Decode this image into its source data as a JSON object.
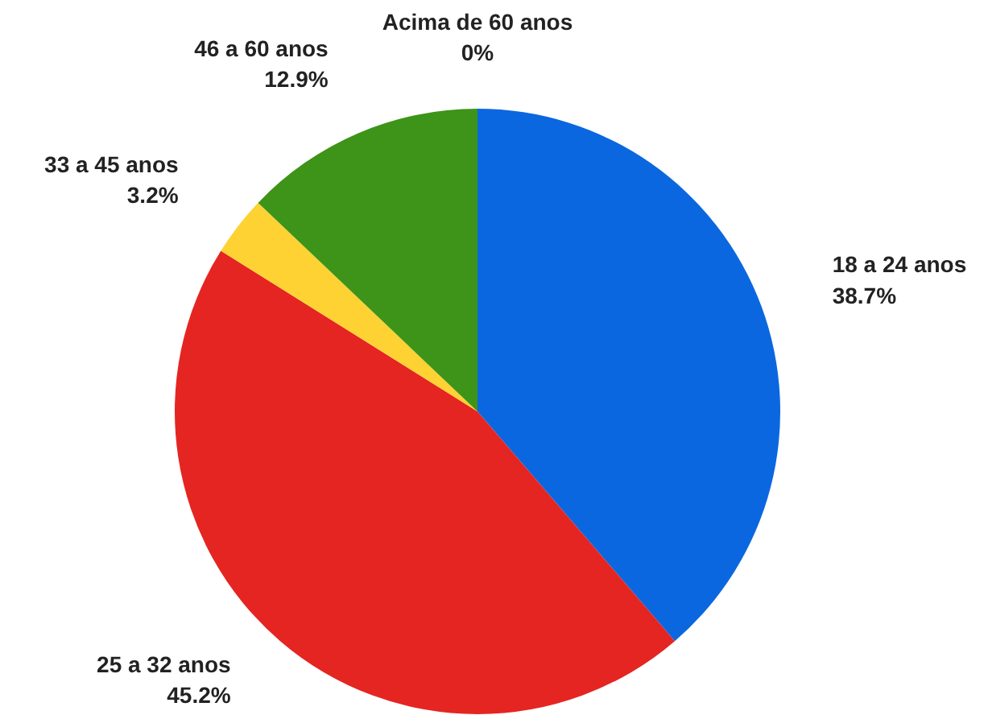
{
  "chart_data": {
    "type": "pie",
    "categories": [
      "18 a 24 anos",
      "25 a 32 anos",
      "33 a 45 anos",
      "46 a 60 anos",
      "Acima de 60 anos"
    ],
    "values": [
      38.7,
      45.2,
      3.2,
      12.9,
      0
    ],
    "colors": [
      "#0b67e0",
      "#e52521",
      "#fdd232",
      "#3d9418",
      "#7f7f7f"
    ],
    "value_labels": [
      "38.7%",
      "45.2%",
      "3.2%",
      "12.9%",
      "0%"
    ]
  }
}
